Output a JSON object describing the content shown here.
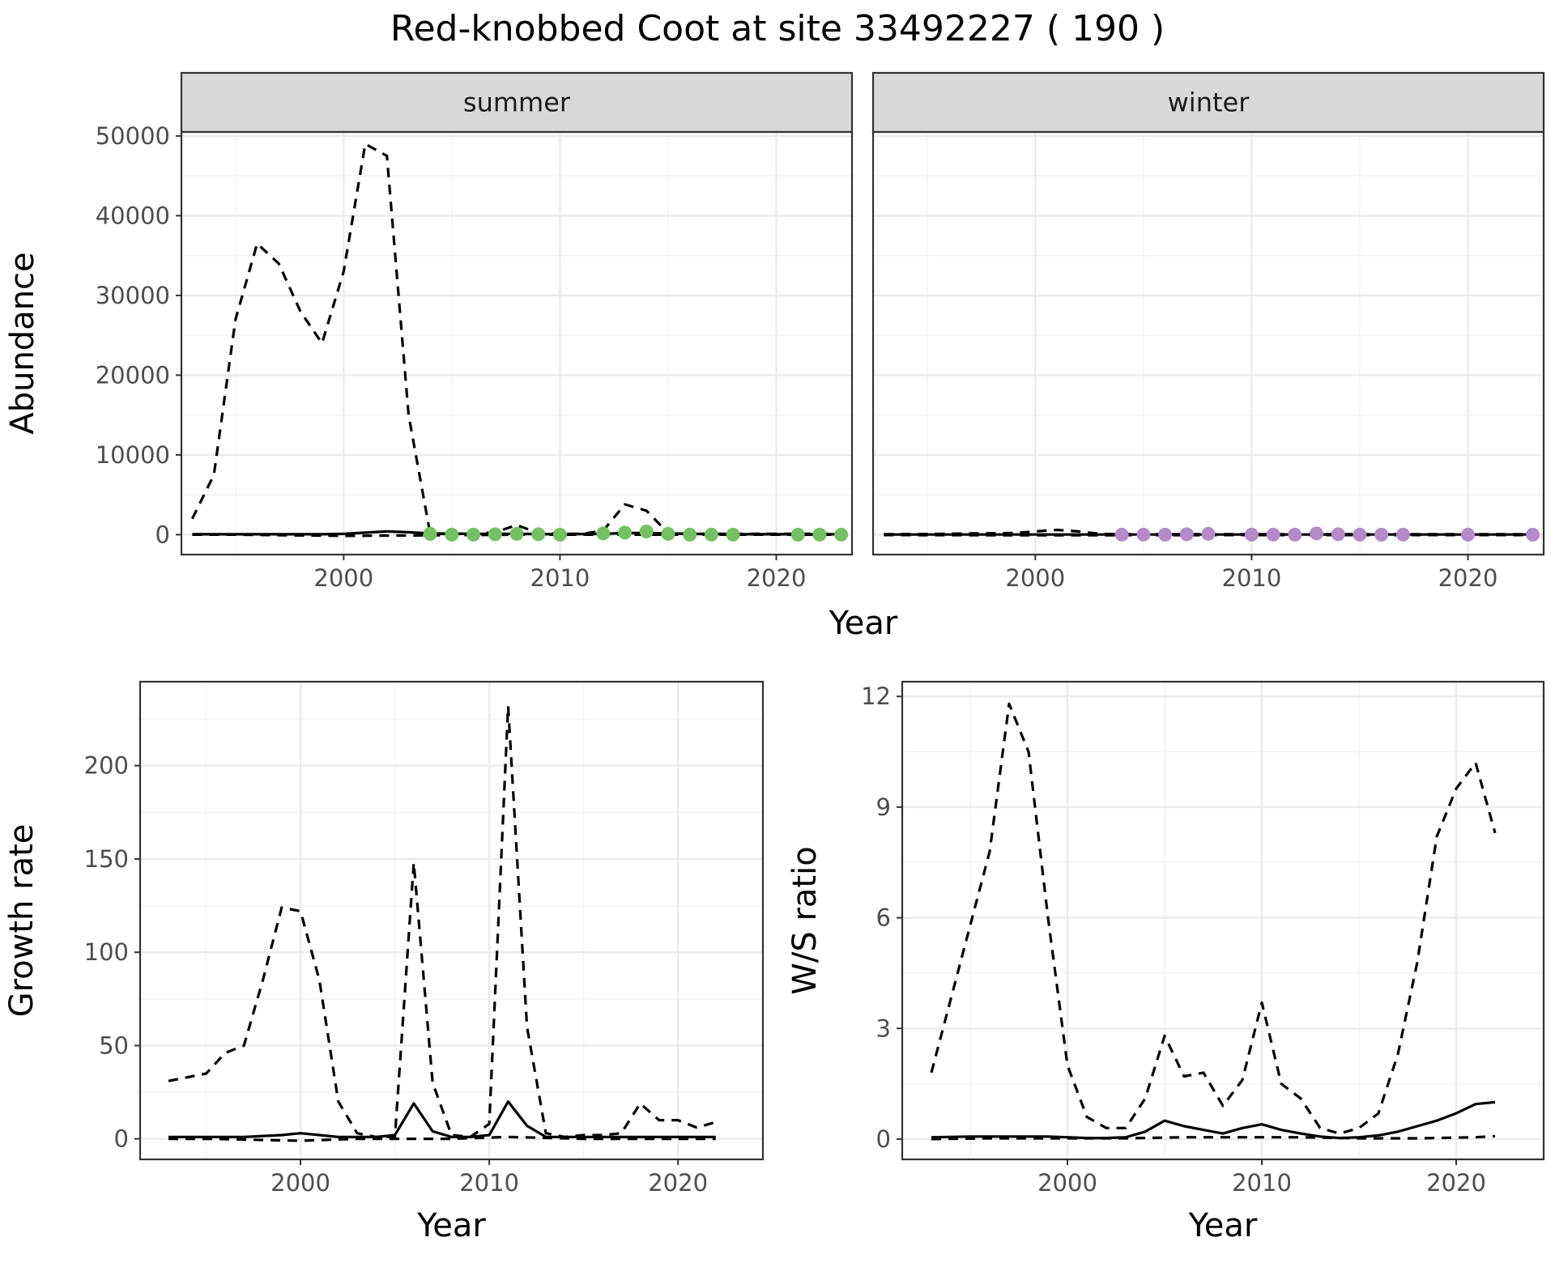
{
  "figure": {
    "title": "Red-knobbed Coot at site 33492227 ( 190 )",
    "abundance_xlabel": "Year"
  },
  "chart_data": [
    {
      "type": "line",
      "panel": "abundance",
      "facet": "summer",
      "xlabel": "",
      "ylabel": "Abundance",
      "xlim": [
        1992.5,
        2023.5
      ],
      "ylim": [
        -2500,
        50500
      ],
      "x_ticks": [
        2000,
        2010,
        2020
      ],
      "y_ticks": [
        0,
        10000,
        20000,
        30000,
        40000,
        50000
      ],
      "grid": true,
      "series": [
        {
          "style": "dashed",
          "x": [
            1993,
            1994,
            1995,
            1996,
            1997,
            1998,
            1999,
            2000,
            2001,
            2002,
            2003,
            2004,
            2005,
            2006,
            2007,
            2008,
            2009,
            2010,
            2011,
            2012,
            2013,
            2014,
            2015,
            2016,
            2017,
            2018,
            2019,
            2020,
            2021,
            2022,
            2023
          ],
          "y": [
            2000,
            7500,
            27000,
            36500,
            34000,
            28000,
            24000,
            33000,
            49000,
            47500,
            15000,
            100,
            100,
            100,
            300,
            1200,
            200,
            100,
            100,
            500,
            3800,
            3000,
            200,
            100,
            100,
            100,
            100,
            100,
            100,
            100,
            100
          ]
        },
        {
          "style": "dashed",
          "x": [
            1993,
            1995,
            2000,
            2003,
            2008,
            2013,
            2018,
            2023
          ],
          "y": [
            0,
            0,
            -150,
            -100,
            0,
            0,
            0,
            0
          ]
        },
        {
          "style": "solid",
          "x": [
            1993,
            1995,
            1997,
            1999,
            2000,
            2001,
            2002,
            2003,
            2004,
            2006,
            2008,
            2010,
            2012,
            2013,
            2014,
            2016,
            2018,
            2020,
            2023
          ],
          "y": [
            50,
            50,
            50,
            50,
            100,
            250,
            400,
            300,
            150,
            100,
            100,
            50,
            100,
            200,
            200,
            100,
            50,
            50,
            50
          ]
        }
      ],
      "points": {
        "color": "#74c062",
        "x": [
          2004,
          2005,
          2006,
          2007,
          2008,
          2009,
          2010,
          2012,
          2013,
          2014,
          2015,
          2016,
          2017,
          2018,
          2021,
          2022,
          2023
        ],
        "y": [
          100,
          0,
          0,
          50,
          100,
          50,
          0,
          150,
          250,
          400,
          100,
          0,
          0,
          0,
          0,
          0,
          0
        ]
      }
    },
    {
      "type": "line",
      "panel": "abundance",
      "facet": "winter",
      "xlabel": "",
      "ylabel": "",
      "xlim": [
        1992.5,
        2023.5
      ],
      "ylim": [
        -2500,
        50500
      ],
      "x_ticks": [
        2000,
        2010,
        2020
      ],
      "y_ticks": [
        0,
        10000,
        20000,
        30000,
        40000,
        50000
      ],
      "grid": true,
      "series": [
        {
          "style": "dashed",
          "x": [
            1993,
            1995,
            1997,
            1999,
            2000,
            2001,
            2002,
            2003,
            2004,
            2006,
            2008,
            2010,
            2013,
            2016,
            2020,
            2023
          ],
          "y": [
            50,
            80,
            150,
            200,
            400,
            600,
            400,
            100,
            50,
            50,
            50,
            50,
            50,
            50,
            50,
            50
          ]
        },
        {
          "style": "dashed",
          "x": [
            1993,
            2000,
            2010,
            2023
          ],
          "y": [
            -50,
            -80,
            -50,
            -50
          ]
        },
        {
          "style": "solid",
          "x": [
            1993,
            1998,
            2003,
            2008,
            2013,
            2018,
            2023
          ],
          "y": [
            20,
            20,
            20,
            20,
            20,
            20,
            20
          ]
        }
      ],
      "points": {
        "color": "#b48ac9",
        "x": [
          2004,
          2005,
          2006,
          2007,
          2008,
          2010,
          2011,
          2012,
          2013,
          2014,
          2015,
          2016,
          2017,
          2020,
          2023
        ],
        "y": [
          0,
          0,
          0,
          50,
          100,
          0,
          0,
          0,
          150,
          50,
          0,
          0,
          0,
          0,
          0
        ]
      }
    },
    {
      "type": "line",
      "panel": "growth",
      "xlabel": "Year",
      "ylabel": "Growth rate",
      "xlim": [
        1991.5,
        2024.5
      ],
      "ylim": [
        -11,
        245
      ],
      "x_ticks": [
        2000,
        2010,
        2020
      ],
      "y_ticks": [
        0,
        50,
        100,
        150,
        200
      ],
      "grid": true,
      "series": [
        {
          "style": "dashed",
          "x": [
            1993,
            1995,
            1996,
            1997,
            1998,
            1999,
            2000,
            2001,
            2002,
            2003,
            2004,
            2005,
            2006,
            2007,
            2008,
            2009,
            2010,
            2011,
            2012,
            2013,
            2014,
            2015,
            2016,
            2017,
            2018,
            2019,
            2020,
            2021,
            2022
          ],
          "y": [
            31,
            35,
            46,
            50,
            85,
            124,
            122,
            85,
            20,
            3,
            1,
            1,
            148,
            30,
            2,
            1,
            8,
            232,
            60,
            3,
            1,
            2,
            2,
            3,
            19,
            10,
            10,
            6,
            9
          ]
        },
        {
          "style": "dashed",
          "x": [
            1993,
            1995,
            2000,
            2003,
            2005,
            2008,
            2011,
            2015,
            2020,
            2022
          ],
          "y": [
            0,
            0,
            -1,
            0,
            0,
            0,
            1,
            0,
            0,
            0
          ]
        },
        {
          "style": "solid",
          "x": [
            1993,
            1995,
            1997,
            1999,
            2000,
            2001,
            2002,
            2003,
            2004,
            2005,
            2006,
            2007,
            2008,
            2009,
            2010,
            2011,
            2012,
            2013,
            2014,
            2016,
            2018,
            2020,
            2022
          ],
          "y": [
            1,
            1,
            1,
            2,
            3,
            2,
            1,
            1,
            1,
            2,
            19,
            4,
            1,
            1,
            2,
            20,
            7,
            1,
            1,
            1,
            1,
            1,
            1
          ]
        }
      ]
    },
    {
      "type": "line",
      "panel": "ratio",
      "xlabel": "Year",
      "ylabel": "W/S ratio",
      "xlim": [
        1991.5,
        2024.5
      ],
      "ylim": [
        -0.55,
        12.4
      ],
      "x_ticks": [
        2000,
        2010,
        2020
      ],
      "y_ticks": [
        0,
        3,
        6,
        9,
        12
      ],
      "grid": true,
      "series": [
        {
          "style": "dashed",
          "x": [
            1993,
            1994,
            1995,
            1996,
            1997,
            1998,
            1999,
            2000,
            2001,
            2002,
            2003,
            2004,
            2005,
            2006,
            2007,
            2008,
            2009,
            2010,
            2011,
            2012,
            2013,
            2014,
            2015,
            2016,
            2017,
            2018,
            2019,
            2020,
            2021,
            2022
          ],
          "y": [
            1.8,
            3.8,
            5.8,
            7.8,
            11.8,
            10.5,
            6.0,
            2.0,
            0.6,
            0.3,
            0.3,
            1.1,
            2.8,
            1.7,
            1.8,
            0.9,
            1.6,
            3.7,
            1.5,
            1.1,
            0.3,
            0.15,
            0.3,
            0.7,
            2.3,
            4.8,
            8.2,
            9.5,
            10.2,
            8.3
          ]
        },
        {
          "style": "dashed",
          "x": [
            1993,
            1996,
            2000,
            2003,
            2006,
            2009,
            2012,
            2015,
            2018,
            2021,
            2022
          ],
          "y": [
            0.0,
            0.02,
            0.02,
            0.02,
            0.05,
            0.05,
            0.05,
            0.02,
            0.02,
            0.05,
            0.08
          ]
        },
        {
          "style": "solid",
          "x": [
            1993,
            1995,
            1997,
            1999,
            2000,
            2001,
            2002,
            2003,
            2004,
            2005,
            2006,
            2007,
            2008,
            2009,
            2010,
            2011,
            2012,
            2013,
            2014,
            2015,
            2016,
            2017,
            2018,
            2019,
            2020,
            2021,
            2022
          ],
          "y": [
            0.05,
            0.07,
            0.07,
            0.07,
            0.05,
            0.03,
            0.03,
            0.05,
            0.2,
            0.5,
            0.35,
            0.25,
            0.15,
            0.3,
            0.4,
            0.25,
            0.15,
            0.07,
            0.03,
            0.05,
            0.1,
            0.2,
            0.35,
            0.5,
            0.7,
            0.95,
            1.0
          ]
        }
      ]
    }
  ]
}
